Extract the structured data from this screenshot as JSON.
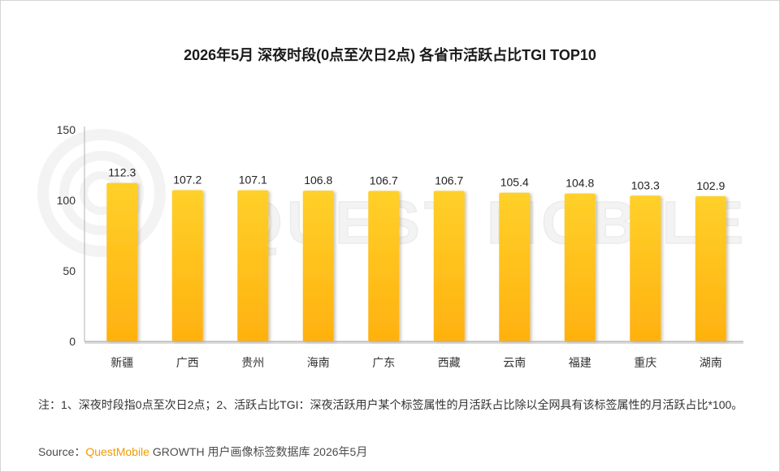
{
  "watermark": "QUEST MOBILE",
  "colors": {
    "bar_top": "#FFD02A",
    "bar_bottom": "#FFB10F",
    "brand": "#F29B00"
  },
  "chart_data": {
    "type": "bar",
    "title": "2026年5月 深夜时段(0点至次日2点) 各省市活跃占比TGI TOP10",
    "categories": [
      "新疆",
      "广西",
      "贵州",
      "海南",
      "广东",
      "西藏",
      "云南",
      "福建",
      "重庆",
      "湖南"
    ],
    "values": [
      112.3,
      107.2,
      107.1,
      106.8,
      106.7,
      106.7,
      105.4,
      104.8,
      103.3,
      102.9
    ],
    "ylim": [
      0,
      150
    ],
    "yticks": [
      0,
      50,
      100,
      150
    ],
    "xlabel": "",
    "ylabel": "",
    "grid": false,
    "legend": "none",
    "data_labels": true
  },
  "footnote": "注：1、深夜时段指0点至次日2点；2、活跃占比TGI：深夜活跃用户某个标签属性的月活跃占比除以全网具有该标签属性的月活跃占比*100。",
  "source": {
    "label": "Source：",
    "brand": "QuestMobile",
    "text": " GROWTH 用户画像标签数据库 2026年5月"
  }
}
